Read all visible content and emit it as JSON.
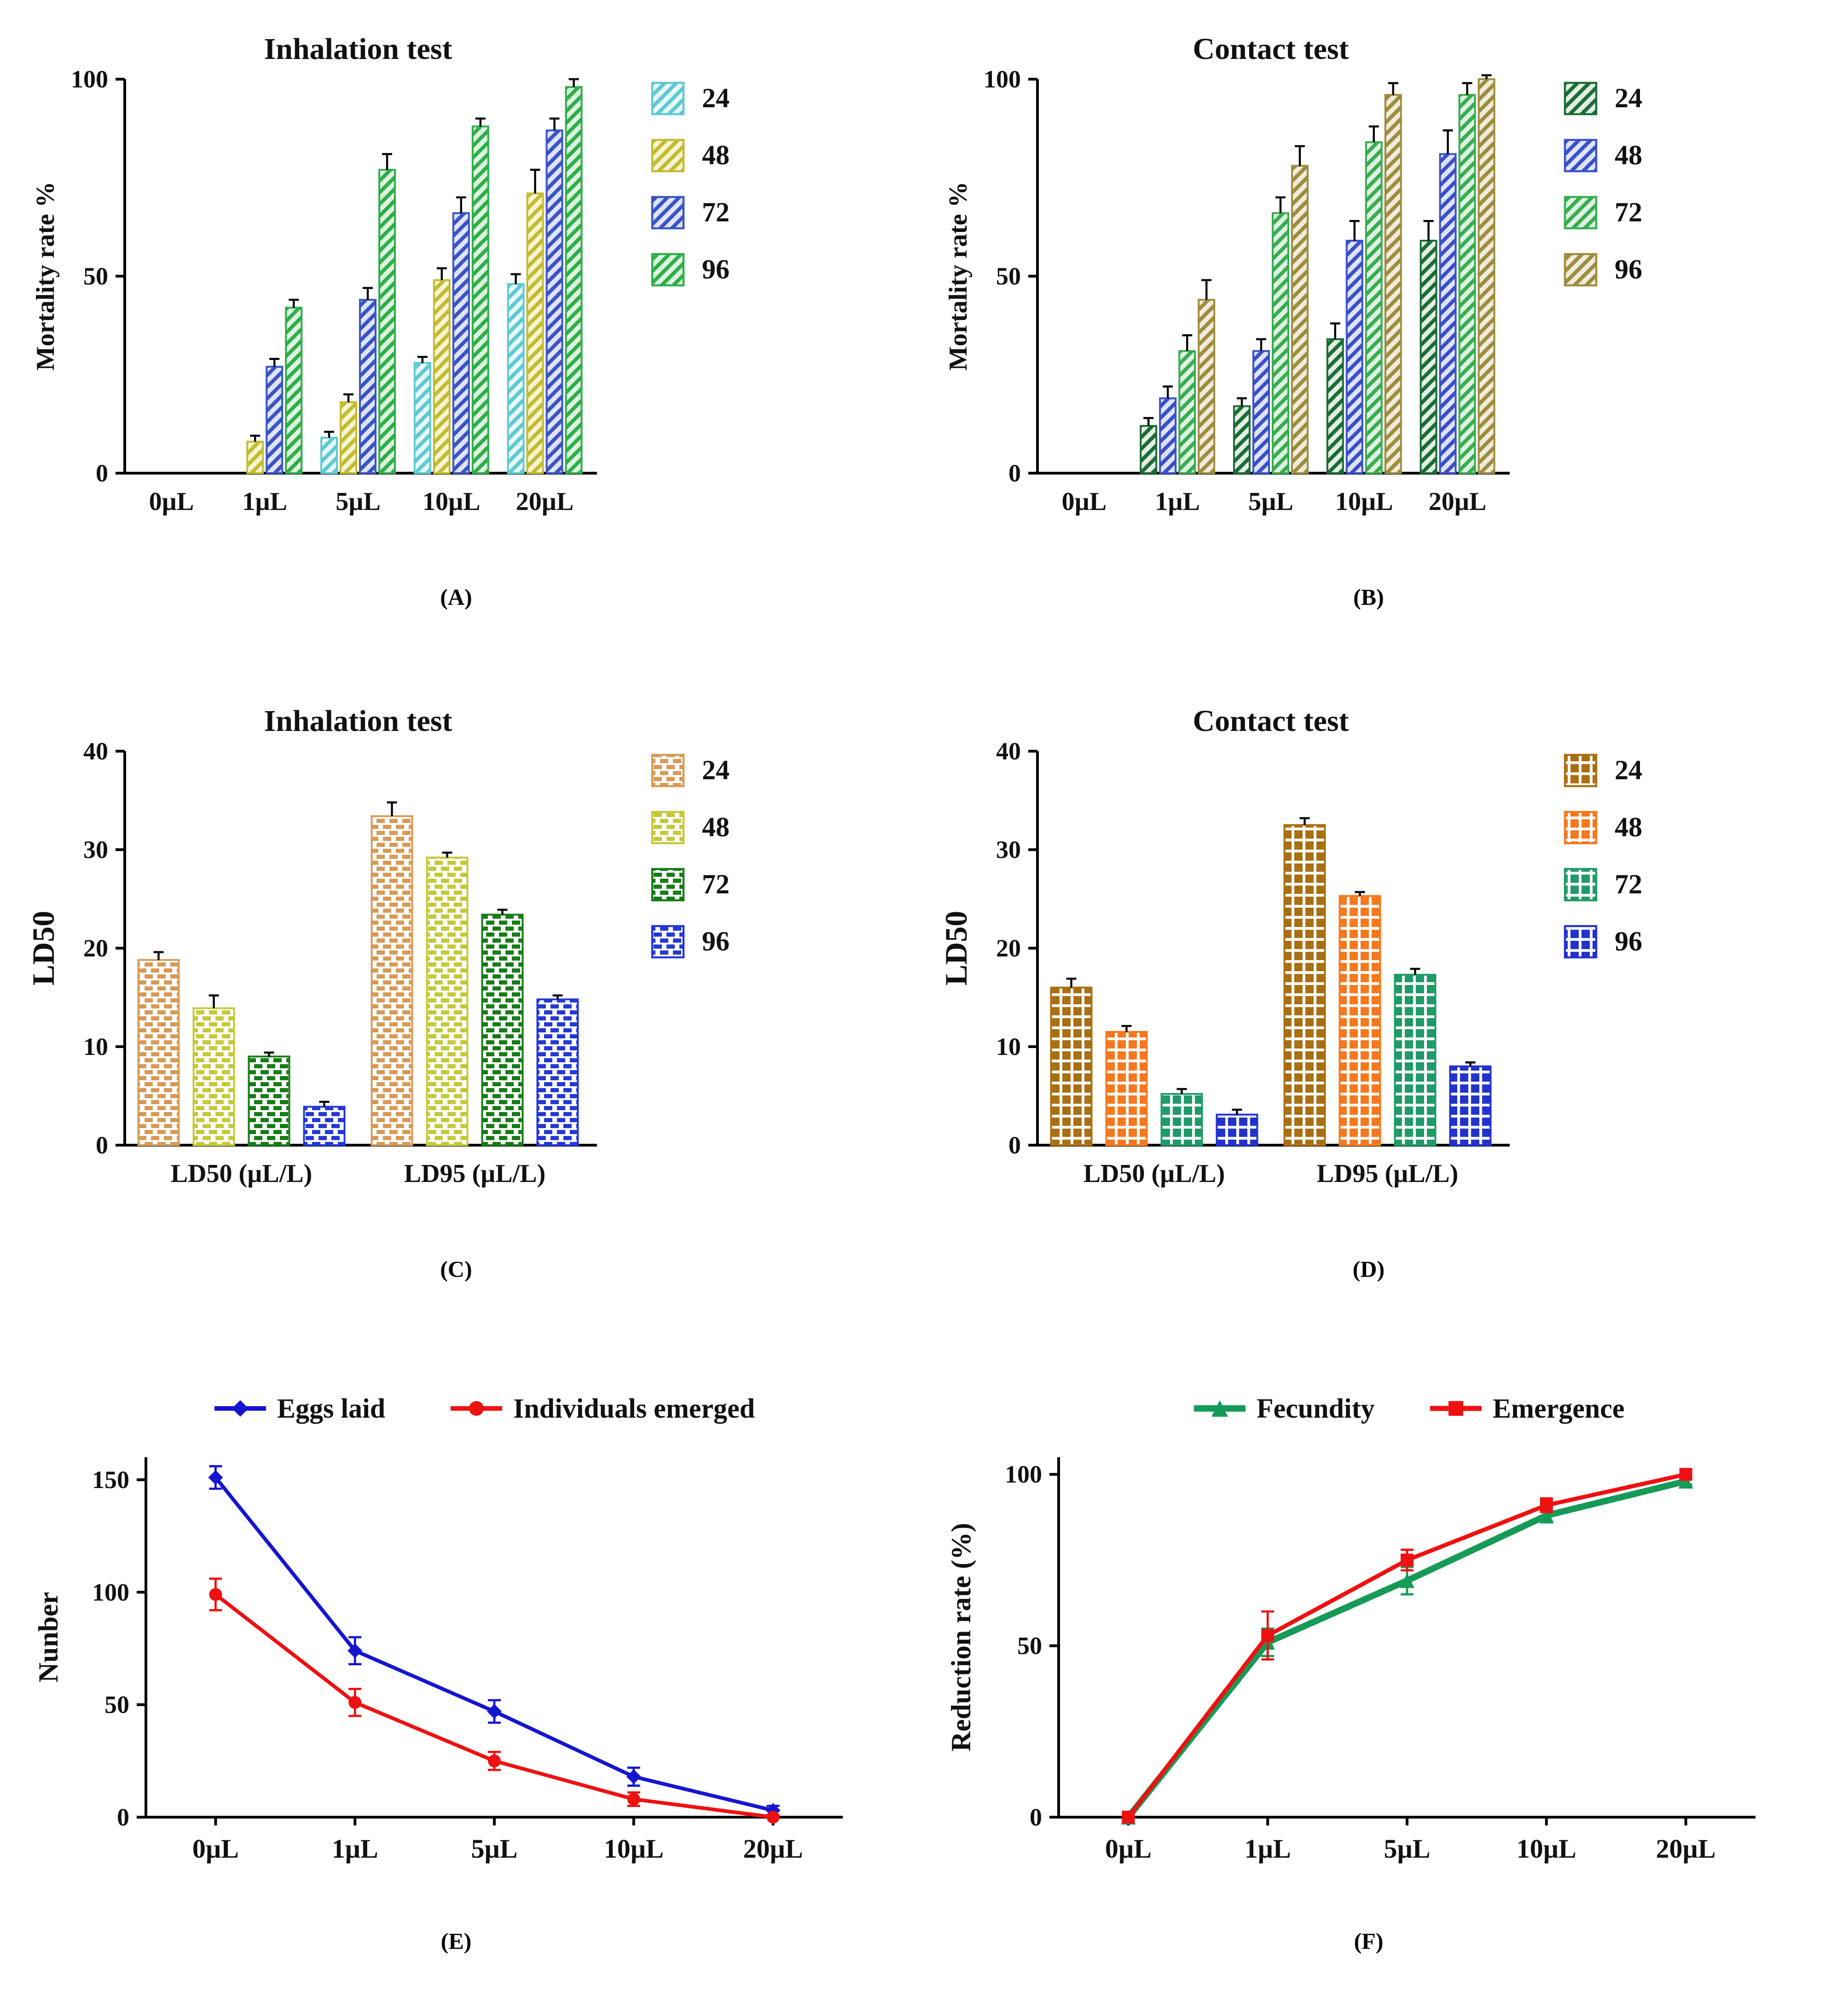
{
  "figure": {
    "background": "#ffffff"
  },
  "panels": [
    {
      "caption": "(A)"
    },
    {
      "caption": "(B)"
    },
    {
      "caption": "(C)"
    },
    {
      "caption": "(D)"
    },
    {
      "caption": "(E)"
    },
    {
      "caption": "(F)"
    }
  ],
  "chart_data": [
    {
      "panel": "A",
      "type": "bar",
      "title": "Inhalation test",
      "xlabel": "",
      "ylabel": "Mortality rate %",
      "ylim": [
        0,
        100
      ],
      "yticks": [
        0,
        50,
        100
      ],
      "grid": false,
      "legend_position": "right",
      "pattern": "diagonal",
      "categories": [
        "0µL",
        "1µL",
        "5µL",
        "10µL",
        "20µL"
      ],
      "series": [
        {
          "name": "24",
          "color": "#5fc9d1",
          "bg": "#e7f8f9",
          "values": [
            0,
            0,
            9,
            28,
            48
          ],
          "err": [
            0,
            0,
            1.5,
            1.5,
            2.5
          ]
        },
        {
          "name": "48",
          "color": "#c2bb2f",
          "bg": "#f6f4d3",
          "values": [
            0,
            8,
            18,
            49,
            71
          ],
          "err": [
            0,
            1.5,
            2,
            3,
            6
          ]
        },
        {
          "name": "72",
          "color": "#3a54c4",
          "bg": "#dfe3f7",
          "values": [
            0,
            27,
            44,
            66,
            87
          ],
          "err": [
            0,
            2,
            3,
            4,
            3
          ]
        },
        {
          "name": "96",
          "color": "#2fae49",
          "bg": "#ddf3e0",
          "values": [
            0,
            42,
            77,
            88,
            98
          ],
          "err": [
            0,
            2,
            4,
            2,
            2
          ]
        }
      ]
    },
    {
      "panel": "B",
      "type": "bar",
      "title": "Contact test",
      "xlabel": "",
      "ylabel": "Mortality rate %",
      "ylim": [
        0,
        100
      ],
      "yticks": [
        0,
        50,
        100
      ],
      "grid": false,
      "legend_position": "right",
      "pattern": "diagonal",
      "categories": [
        "0µL",
        "1µL",
        "5µL",
        "10µL",
        "20µL"
      ],
      "series": [
        {
          "name": "24",
          "color": "#1d6b35",
          "bg": "#e2efe5",
          "values": [
            0,
            12,
            17,
            34,
            59
          ],
          "err": [
            0,
            2,
            2,
            4,
            5
          ]
        },
        {
          "name": "48",
          "color": "#3a50c8",
          "bg": "#dfe3f7",
          "values": [
            0,
            19,
            31,
            59,
            81
          ],
          "err": [
            0,
            3,
            3,
            5,
            6
          ]
        },
        {
          "name": "72",
          "color": "#39ac51",
          "bg": "#def2e1",
          "values": [
            0,
            31,
            66,
            84,
            96
          ],
          "err": [
            0,
            4,
            4,
            4,
            3
          ]
        },
        {
          "name": "96",
          "color": "#9d8c3e",
          "bg": "#f0ebdb",
          "values": [
            0,
            44,
            78,
            96,
            100
          ],
          "err": [
            0,
            5,
            5,
            3,
            1
          ]
        }
      ]
    },
    {
      "panel": "C",
      "type": "bar",
      "title": "Inhalation test",
      "xlabel": "",
      "ylabel": "LD50",
      "ylim": [
        0,
        40
      ],
      "yticks": [
        0,
        10,
        20,
        30,
        40
      ],
      "grid": false,
      "legend_position": "right",
      "pattern": "dashes",
      "categories": [
        "LD50 (µL/L)",
        "LD95 (µL/L)"
      ],
      "series": [
        {
          "name": "24",
          "color": "#d79a55",
          "values": [
            18.8,
            33.4
          ],
          "err": [
            0.8,
            1.4
          ]
        },
        {
          "name": "48",
          "color": "#c3c937",
          "values": [
            13.9,
            29.2
          ],
          "err": [
            1.3,
            0.5
          ]
        },
        {
          "name": "72",
          "color": "#167c16",
          "values": [
            9.0,
            23.4
          ],
          "err": [
            0.4,
            0.5
          ]
        },
        {
          "name": "96",
          "color": "#2438d4",
          "values": [
            3.9,
            14.8
          ],
          "err": [
            0.5,
            0.4
          ]
        }
      ]
    },
    {
      "panel": "D",
      "type": "bar",
      "title": "Contact test",
      "xlabel": "",
      "ylabel": "LD50",
      "ylim": [
        0,
        40
      ],
      "yticks": [
        0,
        10,
        20,
        30,
        40
      ],
      "grid": false,
      "legend_position": "right",
      "pattern": "plaid",
      "categories": [
        "LD50 (µL/L)",
        "LD95 (µL/L)"
      ],
      "series": [
        {
          "name": "24",
          "color": "#a96f12",
          "values": [
            16.0,
            32.5
          ],
          "err": [
            0.9,
            0.7
          ]
        },
        {
          "name": "48",
          "color": "#f5781e",
          "values": [
            11.5,
            25.3
          ],
          "err": [
            0.6,
            0.4
          ]
        },
        {
          "name": "72",
          "color": "#1f9a68",
          "values": [
            5.2,
            17.3
          ],
          "err": [
            0.5,
            0.6
          ]
        },
        {
          "name": "96",
          "color": "#2233cc",
          "values": [
            3.1,
            8.0
          ],
          "err": [
            0.5,
            0.4
          ]
        }
      ]
    },
    {
      "panel": "E",
      "type": "line",
      "title": "",
      "xlabel": "",
      "ylabel": "Nunber",
      "ylim": [
        0,
        160
      ],
      "yticks": [
        0,
        50,
        100,
        150
      ],
      "grid": false,
      "legend_position": "top",
      "categories": [
        "0µL",
        "1µL",
        "5µL",
        "10µL",
        "20µL"
      ],
      "series": [
        {
          "name": "Eggs laid",
          "color": "#1515d0",
          "marker": "diamond",
          "marker_size": 8,
          "line_width": 4,
          "values": [
            151,
            74,
            47,
            18,
            3
          ],
          "err": [
            5,
            6,
            5,
            4,
            2
          ]
        },
        {
          "name": "Individuals emerged",
          "color": "#ee1111",
          "marker": "circle",
          "marker_size": 7,
          "line_width": 4,
          "values": [
            99,
            51,
            25,
            8,
            0
          ],
          "err": [
            7,
            6,
            4,
            3,
            0
          ]
        }
      ]
    },
    {
      "panel": "F",
      "type": "line",
      "title": "",
      "xlabel": "",
      "ylabel": "Reduction rate (%)",
      "ylim": [
        0,
        105
      ],
      "yticks": [
        0,
        50,
        100
      ],
      "grid": false,
      "legend_position": "top",
      "categories": [
        "0µL",
        "1µL",
        "5µL",
        "10µL",
        "20µL"
      ],
      "series": [
        {
          "name": "Fecundity",
          "color": "#169a57",
          "marker": "tri",
          "marker_size": 8,
          "line_width": 7,
          "values": [
            0,
            51,
            69,
            88,
            98
          ],
          "err": [
            0,
            4,
            4,
            2,
            1
          ]
        },
        {
          "name": "Emergence",
          "color": "#ee1111",
          "marker": "square",
          "marker_size": 7,
          "line_width": 4.5,
          "values": [
            0,
            53,
            75,
            91,
            100
          ],
          "err": [
            0,
            7,
            3,
            2,
            1
          ]
        }
      ]
    }
  ]
}
